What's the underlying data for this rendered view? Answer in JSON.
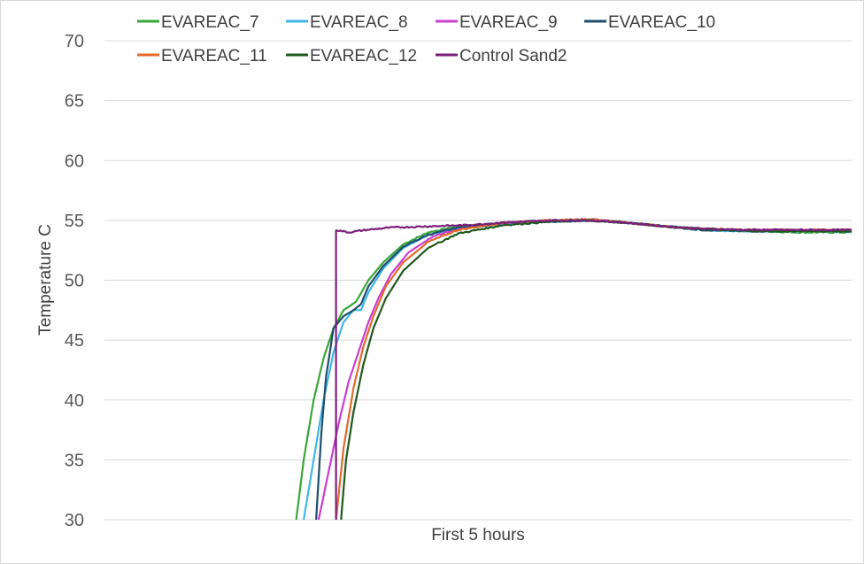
{
  "chart_data": {
    "type": "line",
    "title": "",
    "xlabel": "First 5 hours",
    "ylabel": "Temperature C",
    "x_range": [
      0,
      300
    ],
    "ylim": [
      30,
      70
    ],
    "yticks": [
      30,
      35,
      40,
      45,
      50,
      55,
      60,
      65,
      70
    ],
    "grid": "horizontal",
    "legend_position": "top",
    "series": [
      {
        "name": "EVAREAC_7",
        "color": "#3aa53a",
        "points": [
          [
            77,
            30
          ],
          [
            80,
            35
          ],
          [
            84,
            40
          ],
          [
            88,
            43.5
          ],
          [
            92,
            46
          ],
          [
            96,
            47.5
          ],
          [
            101,
            48.2
          ],
          [
            106,
            50
          ],
          [
            112,
            51.5
          ],
          [
            120,
            53
          ],
          [
            130,
            54
          ],
          [
            142,
            54.5
          ],
          [
            160,
            54.8
          ],
          [
            180,
            55
          ],
          [
            195,
            55
          ],
          [
            210,
            54.8
          ],
          [
            225,
            54.5
          ],
          [
            240,
            54.2
          ],
          [
            260,
            54.1
          ],
          [
            280,
            54
          ],
          [
            300,
            54
          ]
        ]
      },
      {
        "name": "EVAREAC_8",
        "color": "#41b6e6",
        "points": [
          [
            80,
            30
          ],
          [
            84,
            35
          ],
          [
            88,
            40
          ],
          [
            92,
            44
          ],
          [
            96,
            46.5
          ],
          [
            100,
            47.5
          ],
          [
            103,
            47.5
          ],
          [
            106,
            49
          ],
          [
            112,
            51
          ],
          [
            120,
            52.7
          ],
          [
            130,
            53.8
          ],
          [
            142,
            54.3
          ],
          [
            160,
            54.7
          ],
          [
            180,
            54.9
          ],
          [
            195,
            55
          ],
          [
            210,
            54.8
          ],
          [
            225,
            54.5
          ],
          [
            240,
            54.2
          ],
          [
            260,
            54.1
          ],
          [
            280,
            54.1
          ],
          [
            300,
            54.1
          ]
        ]
      },
      {
        "name": "EVAREAC_9",
        "color": "#c83fd0",
        "points": [
          [
            86,
            30
          ],
          [
            90,
            34
          ],
          [
            94,
            38
          ],
          [
            98,
            41.5
          ],
          [
            102,
            44
          ],
          [
            106,
            46.5
          ],
          [
            110,
            48.5
          ],
          [
            115,
            50.5
          ],
          [
            122,
            52.3
          ],
          [
            132,
            53.7
          ],
          [
            145,
            54.4
          ],
          [
            160,
            54.8
          ],
          [
            180,
            55
          ],
          [
            195,
            55.1
          ],
          [
            210,
            54.8
          ],
          [
            225,
            54.5
          ],
          [
            240,
            54.3
          ],
          [
            260,
            54.2
          ],
          [
            280,
            54.2
          ],
          [
            300,
            54.2
          ]
        ]
      },
      {
        "name": "EVAREAC_10",
        "color": "#1f4e6e",
        "points": [
          [
            85,
            30
          ],
          [
            87,
            37
          ],
          [
            89,
            42
          ],
          [
            92,
            46
          ],
          [
            96,
            47
          ],
          [
            100,
            47.5
          ],
          [
            103,
            48
          ],
          [
            106,
            49.5
          ],
          [
            112,
            51.2
          ],
          [
            120,
            52.8
          ],
          [
            130,
            53.8
          ],
          [
            142,
            54.4
          ],
          [
            160,
            54.8
          ],
          [
            180,
            54.9
          ],
          [
            195,
            55
          ],
          [
            210,
            54.8
          ],
          [
            225,
            54.5
          ],
          [
            240,
            54.2
          ],
          [
            260,
            54.1
          ],
          [
            280,
            54.1
          ],
          [
            300,
            54.1
          ]
        ]
      },
      {
        "name": "EVAREAC_11",
        "color": "#e26a2c",
        "points": [
          [
            93,
            30
          ],
          [
            96,
            36
          ],
          [
            100,
            41
          ],
          [
            104,
            44.5
          ],
          [
            108,
            47
          ],
          [
            113,
            49.5
          ],
          [
            120,
            51.5
          ],
          [
            130,
            53.2
          ],
          [
            142,
            54.2
          ],
          [
            160,
            54.8
          ],
          [
            180,
            55
          ],
          [
            195,
            55.1
          ],
          [
            210,
            54.8
          ],
          [
            225,
            54.5
          ],
          [
            240,
            54.3
          ],
          [
            260,
            54.2
          ],
          [
            280,
            54.2
          ],
          [
            300,
            54.2
          ]
        ]
      },
      {
        "name": "EVAREAC_12",
        "color": "#1e5a1e",
        "points": [
          [
            95,
            30
          ],
          [
            97,
            35
          ],
          [
            100,
            39
          ],
          [
            104,
            43
          ],
          [
            108,
            46
          ],
          [
            113,
            48.5
          ],
          [
            120,
            50.8
          ],
          [
            130,
            52.7
          ],
          [
            142,
            53.9
          ],
          [
            160,
            54.6
          ],
          [
            180,
            54.9
          ],
          [
            195,
            55
          ],
          [
            210,
            54.8
          ],
          [
            225,
            54.5
          ],
          [
            240,
            54.3
          ],
          [
            260,
            54.1
          ],
          [
            280,
            54.1
          ],
          [
            300,
            54.1
          ]
        ]
      },
      {
        "name": "Control Sand2",
        "color": "#7b1f7b",
        "points": [
          [
            93,
            30
          ],
          [
            93,
            54.2
          ],
          [
            98,
            54
          ],
          [
            105,
            54.2
          ],
          [
            115,
            54.4
          ],
          [
            130,
            54.5
          ],
          [
            145,
            54.6
          ],
          [
            160,
            54.8
          ],
          [
            180,
            55
          ],
          [
            195,
            55
          ],
          [
            210,
            54.8
          ],
          [
            225,
            54.5
          ],
          [
            240,
            54.3
          ],
          [
            260,
            54.2
          ],
          [
            280,
            54.2
          ],
          [
            300,
            54.2
          ]
        ]
      }
    ]
  }
}
